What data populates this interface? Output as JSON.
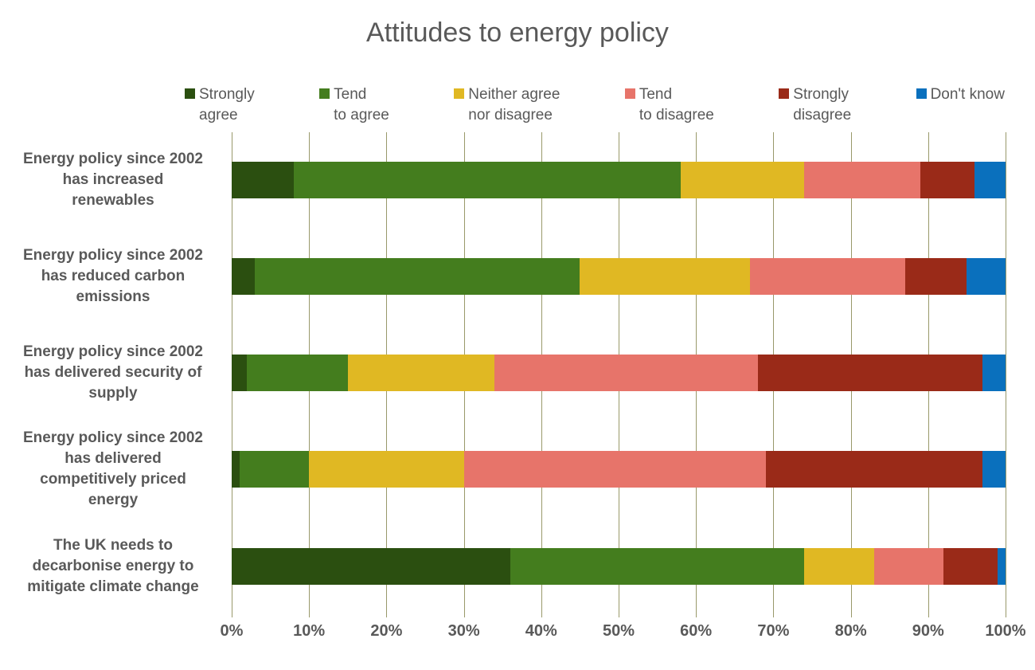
{
  "title": "Attitudes to energy policy",
  "colors": {
    "background": "#ffffff",
    "text": "#595959",
    "gridline": "#99996a"
  },
  "chart_data": {
    "type": "bar",
    "stacked": true,
    "orientation": "horizontal",
    "title": "Attitudes to energy policy",
    "units": "percent",
    "xlim": [
      0,
      100
    ],
    "grid": "vertical",
    "legend_position": "top",
    "categories": [
      "Energy policy since 2002 has increased renewables",
      "Energy policy since 2002 has reduced carbon emissions",
      "Energy policy since 2002 has delivered security of supply",
      "Energy policy since 2002 has delivered competitively priced energy",
      "The UK needs to decarbonise energy to mitigate climate change"
    ],
    "categories_lines": [
      [
        "Energy policy since 2002",
        "has increased",
        "renewables"
      ],
      [
        "Energy policy since 2002",
        "has reduced carbon",
        "emissions"
      ],
      [
        "Energy policy since 2002",
        "has delivered security of",
        "supply"
      ],
      [
        "Energy policy since 2002",
        "has delivered",
        "competitively priced",
        "energy"
      ],
      [
        "The UK needs to",
        "decarbonise energy to",
        "mitigate climate change"
      ]
    ],
    "series": [
      {
        "name": "Strongly agree",
        "color": "#2b4f10",
        "values": [
          8,
          3,
          2,
          1,
          36
        ]
      },
      {
        "name": "Tend to agree",
        "color": "#447d1e",
        "values": [
          50,
          42,
          13,
          9,
          38
        ]
      },
      {
        "name": "Neither agree nor disagree",
        "color": "#e0b823",
        "values": [
          16,
          22,
          19,
          20,
          9
        ]
      },
      {
        "name": "Tend to disagree",
        "color": "#e7746a",
        "values": [
          15,
          20,
          34,
          39,
          9
        ]
      },
      {
        "name": "Strongly disagree",
        "color": "#9a2a18",
        "values": [
          7,
          8,
          29,
          28,
          7
        ]
      },
      {
        "name": "Don't know",
        "color": "#0a70bd",
        "values": [
          4,
          5,
          3,
          3,
          1
        ]
      }
    ],
    "legend_labels_lines": [
      [
        "Strongly",
        "agree"
      ],
      [
        "Tend",
        "to agree"
      ],
      [
        "Neither agree",
        "nor disagree"
      ],
      [
        "Tend",
        "to disagree"
      ],
      [
        "Strongly",
        "disagree"
      ],
      [
        "Don't know"
      ]
    ],
    "x_ticks": [
      "0%",
      "10%",
      "20%",
      "30%",
      "40%",
      "50%",
      "60%",
      "70%",
      "80%",
      "90%",
      "100%"
    ]
  }
}
